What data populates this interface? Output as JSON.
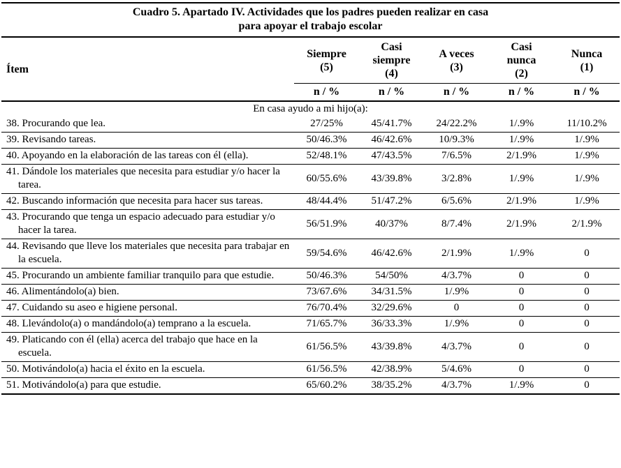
{
  "page": {
    "background_color": "#ffffff",
    "text_color": "#000000",
    "rule_color": "#000000"
  },
  "table": {
    "title_line1": "Cuadro 5. Apartado IV. Actividades que los padres pueden realizar en casa",
    "title_line2": "para apoyar el trabajo escolar",
    "item_header": "Ítem",
    "columns": [
      {
        "label": "Siempre\n(5)",
        "sub": "n / %"
      },
      {
        "label": "Casi\nsiempre\n(4)",
        "sub": "n / %"
      },
      {
        "label": "A veces\n(3)",
        "sub": "n / %"
      },
      {
        "label": "Casi\nnunca\n(2)",
        "sub": "n / %"
      },
      {
        "label": "Nunca\n(1)",
        "sub": "n / %"
      }
    ],
    "section_header": "En casa ayudo a mi hijo(a):",
    "rows": [
      {
        "item": "38. Procurando que lea.",
        "values": [
          "27/25%",
          "45/41.7%",
          "24/22.2%",
          "1/.9%",
          "11/10.2%"
        ]
      },
      {
        "item": "39. Revisando tareas.",
        "values": [
          "50/46.3%",
          "46/42.6%",
          "10/9.3%",
          "1/.9%",
          "1/.9%"
        ]
      },
      {
        "item": "40. Apoyando en la elaboración de las tareas con él (ella).",
        "values": [
          "52/48.1%",
          "47/43.5%",
          "7/6.5%",
          "2/1.9%",
          "1/.9%"
        ]
      },
      {
        "item": "41. Dándole los materiales que necesita para estudiar y/o hacer la tarea.",
        "values": [
          "60/55.6%",
          "43/39.8%",
          "3/2.8%",
          "1/.9%",
          "1/.9%"
        ]
      },
      {
        "item": "42. Buscando información que necesita para hacer sus tareas.",
        "values": [
          "48/44.4%",
          "51/47.2%",
          "6/5.6%",
          "2/1.9%",
          "1/.9%"
        ]
      },
      {
        "item": "43. Procurando que tenga un espacio adecuado para estudiar y/o hacer la tarea.",
        "values": [
          "56/51.9%",
          "40/37%",
          "8/7.4%",
          "2/1.9%",
          "2/1.9%"
        ]
      },
      {
        "item": "44. Revisando que lleve los materiales que necesita para trabajar en la escuela.",
        "values": [
          "59/54.6%",
          "46/42.6%",
          "2/1.9%",
          "1/.9%",
          "0"
        ]
      },
      {
        "item": "45. Procurando un ambiente familiar tranquilo para que estudie.",
        "values": [
          "50/46.3%",
          "54/50%",
          "4/3.7%",
          "0",
          "0"
        ]
      },
      {
        "item": "46. Alimentándolo(a) bien.",
        "values": [
          "73/67.6%",
          "34/31.5%",
          "1/.9%",
          "0",
          "0"
        ]
      },
      {
        "item": "47. Cuidando su aseo e higiene personal.",
        "values": [
          "76/70.4%",
          "32/29.6%",
          "0",
          "0",
          "0"
        ]
      },
      {
        "item": "48. Llevándolo(a) o mandándolo(a) temprano a la escuela.",
        "values": [
          "71/65.7%",
          "36/33.3%",
          "1/.9%",
          "0",
          "0"
        ]
      },
      {
        "item": "49. Platicando con él (ella) acerca del trabajo que hace en la escuela.",
        "values": [
          "61/56.5%",
          "43/39.8%",
          "4/3.7%",
          "0",
          "0"
        ]
      },
      {
        "item": "50. Motivándolo(a) hacia el éxito en la escuela.",
        "values": [
          "61/56.5%",
          "42/38.9%",
          "5/4.6%",
          "0",
          "0"
        ]
      },
      {
        "item": "51. Motivándolo(a) para que estudie.",
        "values": [
          "65/60.2%",
          "38/35.2%",
          "4/3.7%",
          "1/.9%",
          "0"
        ]
      }
    ]
  }
}
